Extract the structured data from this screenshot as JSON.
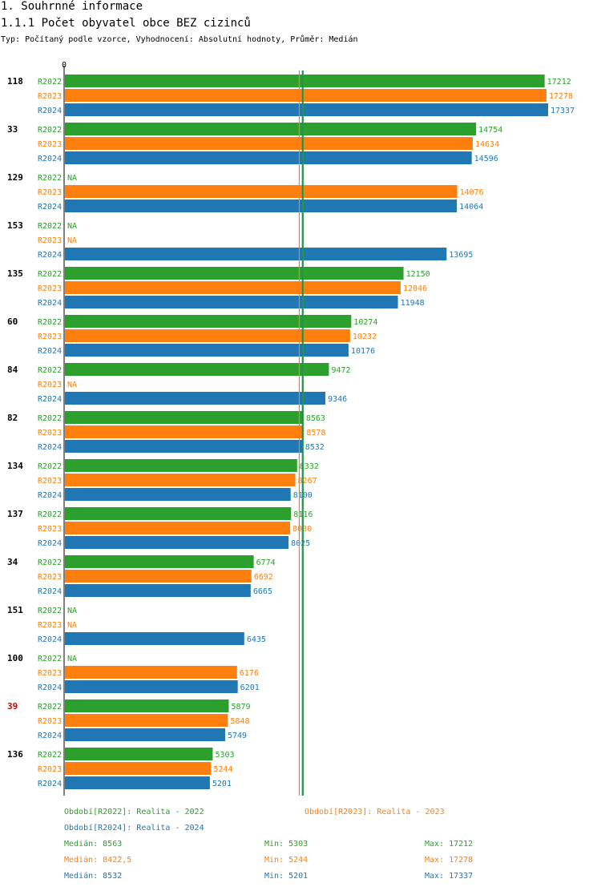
{
  "header": {
    "title": "1. Souhrnné informace",
    "subtitle": "1.1.1 Počet obyvatel obce BEZ cizinců",
    "description": "Typ: Počítaný podle vzorce, Vyhodnocení: Absolutní hodnoty, Průměr: Medián"
  },
  "colors": {
    "R2022": "#2ca02c",
    "R2023": "#ff7f0e",
    "R2024": "#1f77b4",
    "highlight": "#cc0000"
  },
  "chart_data": {
    "type": "bar",
    "orientation": "horizontal",
    "axis_zero_label": "0",
    "x_max": 17337,
    "na_label": "NA",
    "highlight_group": "39",
    "series_names": [
      "R2022",
      "R2023",
      "R2024"
    ],
    "groups": [
      {
        "label": "118",
        "values": [
          17212,
          17278,
          17337
        ]
      },
      {
        "label": "33",
        "values": [
          14754,
          14634,
          14596
        ]
      },
      {
        "label": "129",
        "values": [
          null,
          14076,
          14064
        ]
      },
      {
        "label": "153",
        "values": [
          null,
          null,
          13695
        ]
      },
      {
        "label": "135",
        "values": [
          12150,
          12046,
          11948
        ]
      },
      {
        "label": "60",
        "values": [
          10274,
          10232,
          10176
        ]
      },
      {
        "label": "84",
        "values": [
          9472,
          null,
          9346
        ]
      },
      {
        "label": "82",
        "values": [
          8563,
          8578,
          8532
        ]
      },
      {
        "label": "134",
        "values": [
          8332,
          8267,
          8100
        ]
      },
      {
        "label": "137",
        "values": [
          8116,
          8080,
          8025
        ]
      },
      {
        "label": "34",
        "values": [
          6774,
          6692,
          6665
        ]
      },
      {
        "label": "151",
        "values": [
          null,
          null,
          6435
        ]
      },
      {
        "label": "100",
        "values": [
          null,
          6176,
          6201
        ]
      },
      {
        "label": "39",
        "values": [
          5879,
          5848,
          5749
        ]
      },
      {
        "label": "136",
        "values": [
          5303,
          5244,
          5201
        ]
      }
    ],
    "median_lines": [
      8563,
      8422.5,
      8532
    ]
  },
  "legend": {
    "r2022": "Období[R2022]: Realita - 2022",
    "r2023": "Období[R2023]: Realita - 2023",
    "r2024": "Období[R2024]: Realita - 2024"
  },
  "stats": [
    {
      "median": "Medián: 8563",
      "min": "Min: 5303",
      "max": "Max: 17212"
    },
    {
      "median": "Medián: 8422,5",
      "min": "Min: 5244",
      "max": "Max: 17278"
    },
    {
      "median": "Medián: 8532",
      "min": "Min: 5201",
      "max": "Max: 17337"
    }
  ]
}
